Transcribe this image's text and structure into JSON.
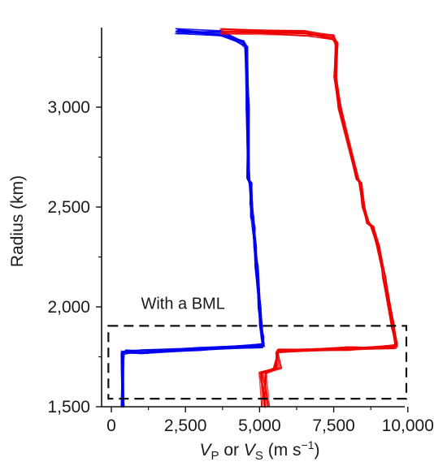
{
  "chart_data": {
    "type": "line",
    "title": "",
    "xlabel": {
      "prefix_var": "V",
      "prefix_sub": "P",
      "mid": " or ",
      "var2": "V",
      "var2_sub": "S",
      "units_open": " (m s",
      "units_sup": "−1",
      "units_close": ")"
    },
    "ylabel": "Radius (km)",
    "xlim": [
      -200,
      10000
    ],
    "ylim": [
      1500,
      3400
    ],
    "xticks": [
      0,
      2500,
      5000,
      7500,
      10000
    ],
    "xtick_labels": [
      "0",
      "2,500",
      "5,000",
      "7,500",
      "10,000"
    ],
    "yticks": [
      1500,
      2000,
      2500,
      3000
    ],
    "ytick_labels": [
      "1,500",
      "2,000",
      "2,500",
      "3,000"
    ],
    "annotation": {
      "text": "With a BML",
      "x": 1000,
      "y": 1990
    },
    "box": {
      "x_range": [
        -100,
        9950
      ],
      "r_range": [
        1540,
        1905
      ],
      "style": "dashed"
    },
    "series": [
      {
        "color": "#0000ee",
        "x": [
          2200,
          3700,
          4450,
          4550,
          4600,
          4620,
          4700,
          4720,
          4750,
          4800,
          4850,
          4900,
          5000,
          5050,
          5100,
          5120,
          5100,
          3000,
          1000,
          500,
          400,
          380,
          380
        ],
        "y": [
          3380,
          3370,
          3320,
          3300,
          3000,
          2640,
          2620,
          2520,
          2450,
          2400,
          2300,
          2200,
          2000,
          1900,
          1850,
          1810,
          1805,
          1790,
          1775,
          1775,
          1770,
          1770,
          1500
        ]
      },
      {
        "color": "#ee0000",
        "x": [
          3700,
          6500,
          7500,
          7600,
          7550,
          7700,
          8300,
          8400,
          8500,
          8650,
          8800,
          9000,
          9200,
          9500,
          9600,
          9550,
          8000,
          5600,
          5600,
          5100,
          5200
        ],
        "y": [
          3380,
          3370,
          3350,
          3310,
          3150,
          3000,
          2640,
          2620,
          2500,
          2420,
          2400,
          2300,
          2150,
          1900,
          1810,
          1800,
          1790,
          1780,
          1690,
          1670,
          1500
        ]
      }
    ]
  }
}
